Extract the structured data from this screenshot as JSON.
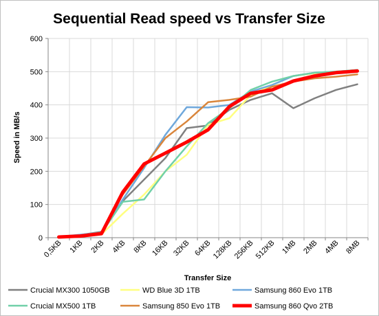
{
  "chart_data": {
    "type": "line",
    "title": "Sequential Read speed vs Transfer Size",
    "xlabel": "Transfer Size",
    "ylabel": "Speed in MB/s",
    "ylim": [
      0,
      600
    ],
    "yticks": [
      0,
      100,
      200,
      300,
      400,
      500,
      600
    ],
    "grid": true,
    "legend": "bottom",
    "categories": [
      "0,5KB",
      "1KB",
      "2KB",
      "4KB",
      "8KB",
      "16KB",
      "32KB",
      "64KB",
      "128KB",
      "256KB",
      "512KB",
      "1MB",
      "2MB",
      "4MB",
      "8MB"
    ],
    "series": [
      {
        "name": "Crucial MX300 1050GB",
        "color": "#808080",
        "values": [
          2,
          8,
          18,
          110,
          175,
          240,
          330,
          338,
          385,
          415,
          435,
          390,
          420,
          445,
          462
        ]
      },
      {
        "name": "WD Blue 3D 1TB",
        "color": "#ffff80",
        "values": [
          2,
          4,
          10,
          72,
          130,
          200,
          250,
          340,
          360,
          430,
          460,
          487,
          495,
          500,
          505
        ]
      },
      {
        "name": "Samsung 860 Evo 1TB",
        "color": "#6fa8dc",
        "values": [
          3,
          9,
          15,
          115,
          210,
          310,
          393,
          392,
          400,
          440,
          460,
          487,
          497,
          500,
          505
        ]
      },
      {
        "name": "Crucial MX500 1TB",
        "color": "#70d0a8",
        "values": [
          2,
          6,
          14,
          108,
          115,
          200,
          275,
          345,
          390,
          445,
          470,
          487,
          497,
          500,
          505
        ]
      },
      {
        "name": "Samsung 850 Evo 1TB",
        "color": "#d9853b",
        "values": [
          2,
          7,
          15,
          130,
          215,
          300,
          350,
          408,
          415,
          425,
          455,
          470,
          480,
          485,
          492
        ]
      },
      {
        "name": "Samsung 860 Qvo 2TB",
        "color": "#ff0000",
        "values": [
          2,
          5,
          12,
          137,
          222,
          255,
          288,
          325,
          395,
          435,
          445,
          472,
          487,
          497,
          502
        ]
      }
    ]
  }
}
